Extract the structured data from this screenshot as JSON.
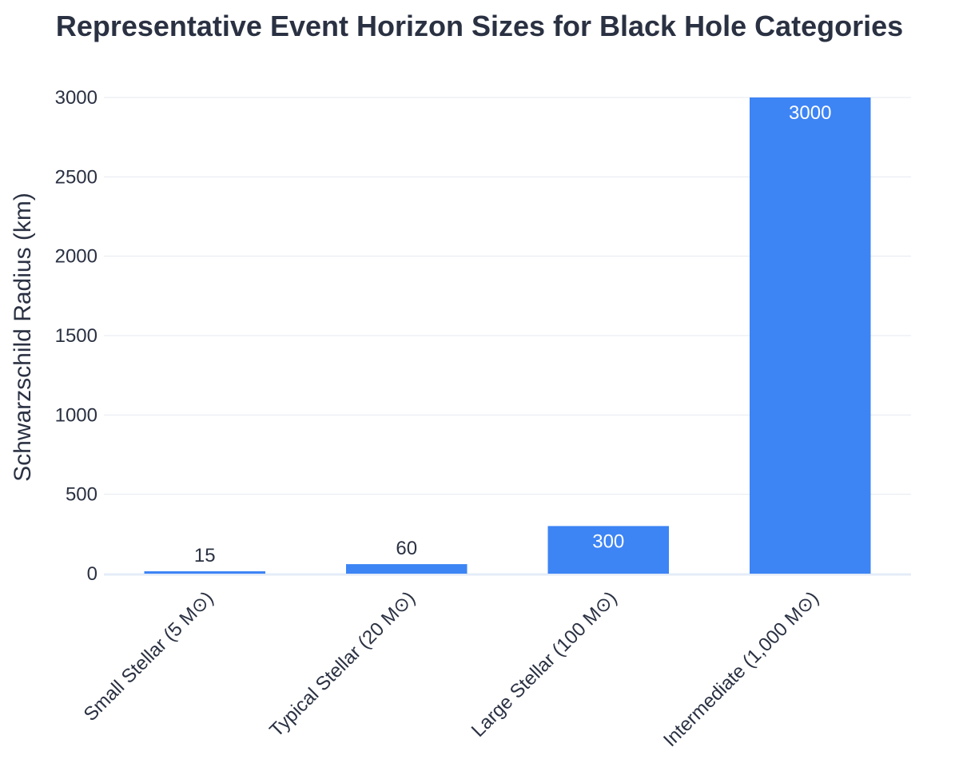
{
  "chart_data": {
    "type": "bar",
    "title": "Representative Event Horizon Sizes for Black Hole Categories",
    "xlabel": "",
    "ylabel": "Schwarzschild Radius (km)",
    "categories": [
      "Small Stellar (5 M⊙)",
      "Typical Stellar (20 M⊙)",
      "Large Stellar (100 M⊙)",
      "Intermediate (1,000 M⊙)"
    ],
    "values": [
      15,
      60,
      300,
      3000
    ],
    "data_labels": [
      "15",
      "60",
      "300",
      "3000"
    ],
    "ylim": [
      0,
      3000
    ],
    "yticks": [
      0,
      500,
      1000,
      1500,
      2000,
      2500,
      3000
    ],
    "ytick_labels": [
      "0",
      "500",
      "1000",
      "1500",
      "2000",
      "2500",
      "3000"
    ],
    "grid": true,
    "legend": "none",
    "bar_color": "#3d84f5"
  }
}
